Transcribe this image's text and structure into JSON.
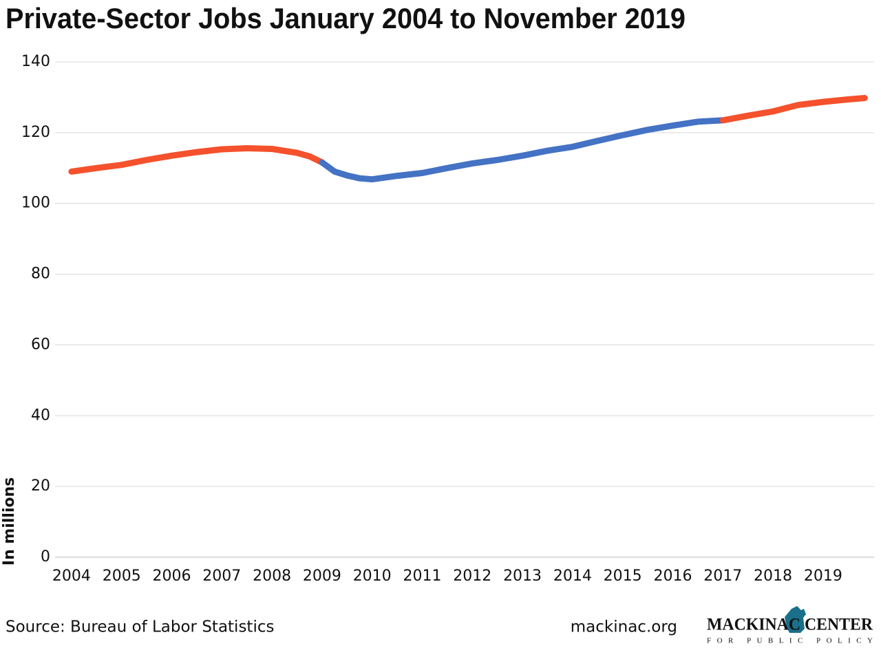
{
  "chart_data": {
    "type": "line",
    "title": "Private-Sector Jobs January 2004 to November 2019",
    "ylabel": "In millions",
    "source": "Source: Bureau of Labor Statistics",
    "website": "mackinac.org",
    "logo_title": "MACKINAC CENTER",
    "logo_subtitle": "FOR PUBLIC POLICY",
    "xlim": [
      2003.85,
      2019.95
    ],
    "xticks": [
      2004,
      2005,
      2006,
      2007,
      2008,
      2009,
      2010,
      2011,
      2012,
      2013,
      2014,
      2015,
      2016,
      2017,
      2018,
      2019
    ],
    "ylim": [
      0,
      140
    ],
    "yticks": [
      0,
      20,
      40,
      60,
      80,
      100,
      120,
      140
    ],
    "grid": true,
    "series": [
      {
        "color": "#f4512c",
        "x": [
          2004.0,
          2004.5,
          2005.0,
          2005.5,
          2006.0,
          2006.5,
          2007.0,
          2007.5,
          2008.0,
          2008.5,
          2008.75,
          2009.0
        ],
        "values": [
          109.0,
          110.0,
          110.9,
          112.3,
          113.5,
          114.5,
          115.3,
          115.6,
          115.4,
          114.3,
          113.3,
          111.6
        ]
      },
      {
        "color": "#4472c4",
        "x": [
          2009.0,
          2009.25,
          2009.5,
          2009.75,
          2010.0,
          2010.5,
          2011.0,
          2011.5,
          2012.0,
          2012.5,
          2013.0,
          2013.5,
          2014.0,
          2014.5,
          2015.0,
          2015.5,
          2016.0,
          2016.5,
          2017.0
        ],
        "values": [
          111.6,
          109.0,
          107.9,
          107.1,
          106.8,
          107.8,
          108.6,
          110.0,
          111.3,
          112.3,
          113.5,
          114.9,
          116.0,
          117.7,
          119.3,
          120.8,
          122.0,
          123.1,
          123.5
        ]
      },
      {
        "color": "#f4512c",
        "x": [
          2017.0,
          2017.5,
          2018.0,
          2018.5,
          2019.0,
          2019.5,
          2019.83
        ],
        "values": [
          123.5,
          124.8,
          126.0,
          127.8,
          128.7,
          129.4,
          129.8
        ]
      }
    ]
  }
}
